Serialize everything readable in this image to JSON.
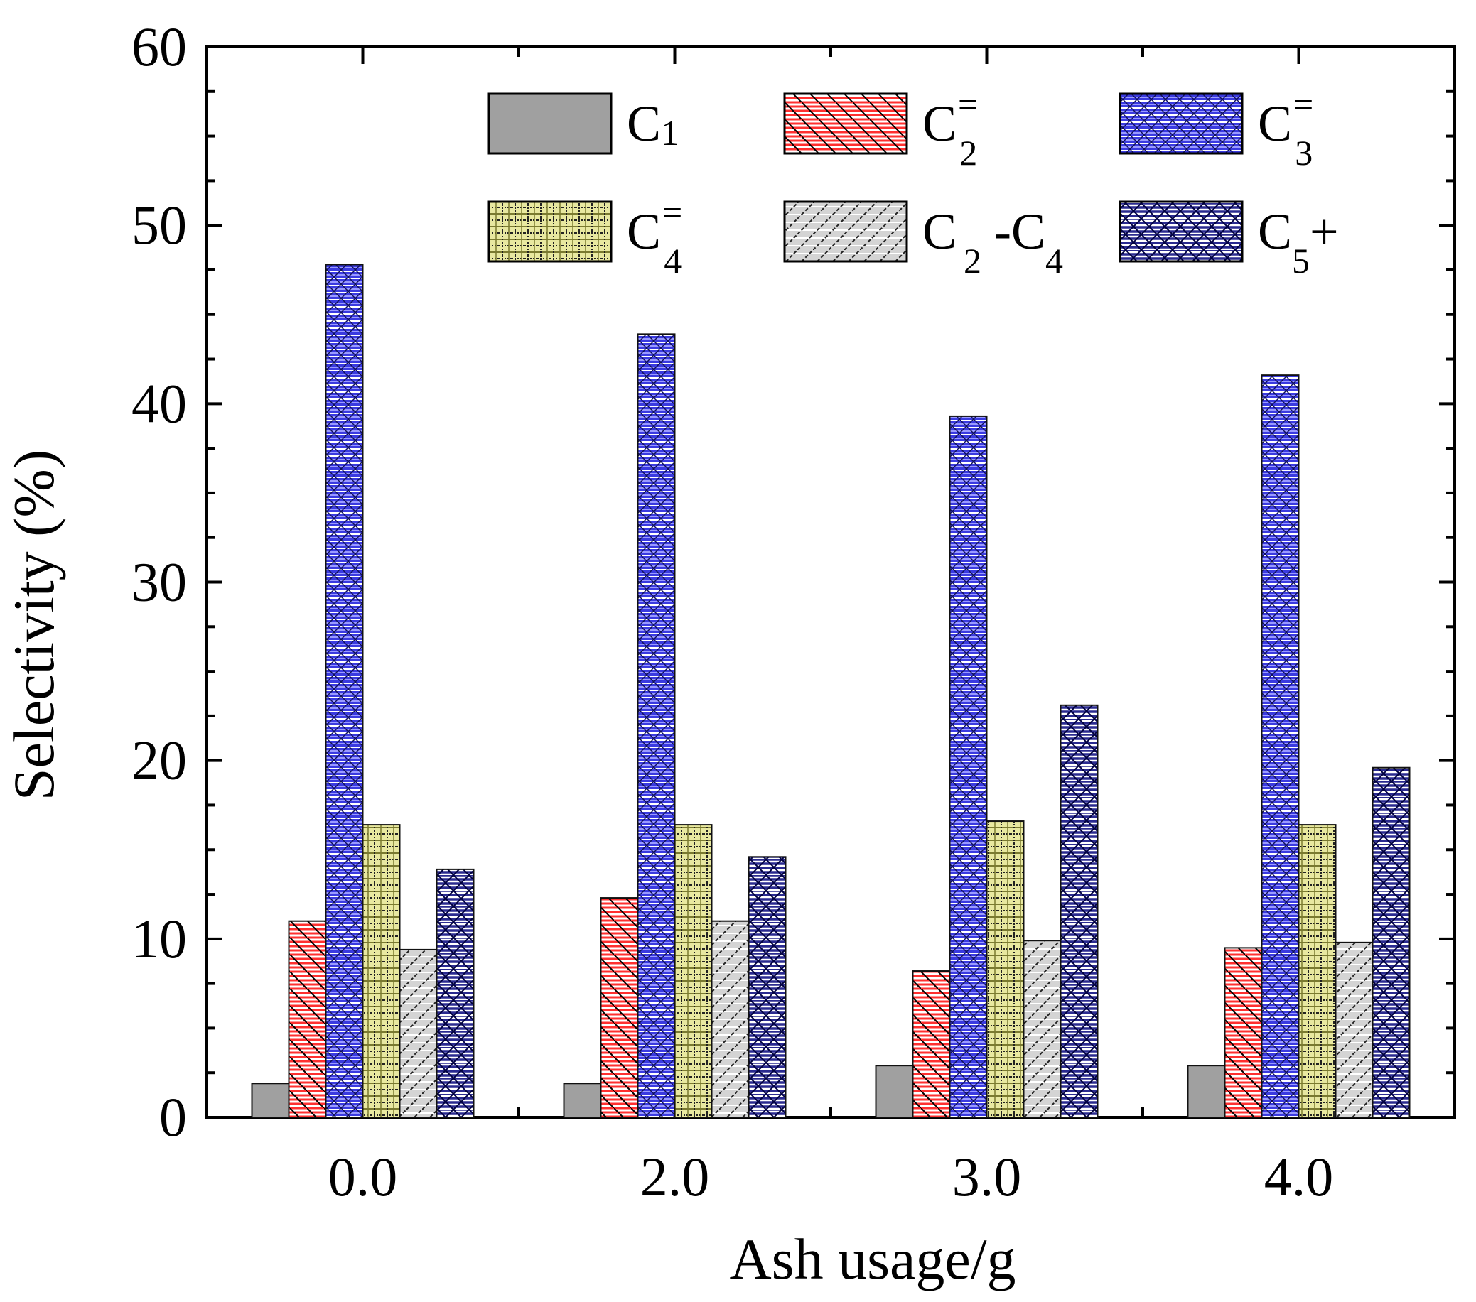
{
  "chart_data": {
    "type": "bar",
    "title": "",
    "xlabel": "Ash usage/g",
    "ylabel": "Selectivity (%)",
    "ylim": [
      0,
      60
    ],
    "yticks": [
      0,
      10,
      20,
      30,
      40,
      50,
      60
    ],
    "categories": [
      "0.0",
      "2.0",
      "3.0",
      "4.0"
    ],
    "legend_position": "top",
    "series": [
      {
        "name": "C1",
        "base": "C",
        "sub": "1",
        "sup": "",
        "suffix": "",
        "color": "#a0a0a0",
        "pattern": "solid",
        "values": [
          1.9,
          1.9,
          2.9,
          2.9
        ]
      },
      {
        "name": "C2=",
        "base": "C",
        "sub": "2",
        "sup": "=",
        "suffix": "",
        "color": "#ff2020",
        "pattern": "red-hatch",
        "values": [
          11.0,
          12.3,
          8.2,
          9.5
        ]
      },
      {
        "name": "C3=",
        "base": "C",
        "sub": "3",
        "sup": "=",
        "suffix": "",
        "color": "#2a2acc",
        "pattern": "blue-crosshatch",
        "values": [
          47.8,
          43.9,
          39.3,
          41.6
        ]
      },
      {
        "name": "C4=",
        "base": "C",
        "sub": "4",
        "sup": "=",
        "suffix": "",
        "color": "#b8b860",
        "pattern": "olive-grid",
        "values": [
          16.4,
          16.4,
          16.6,
          16.4
        ]
      },
      {
        "name": "C2-C4",
        "base": "C",
        "sub": "2",
        "sup": "",
        "suffix": " -C",
        "sub2": "4",
        "color": "#b0b0b0",
        "pattern": "gray-diag",
        "values": [
          9.4,
          11.0,
          9.9,
          9.8
        ]
      },
      {
        "name": "C5+",
        "base": "C",
        "sub": "5",
        "sup": "",
        "suffix": "+",
        "color": "#1a1a80",
        "pattern": "navy-cross",
        "values": [
          13.9,
          14.6,
          23.1,
          19.6
        ]
      }
    ]
  }
}
